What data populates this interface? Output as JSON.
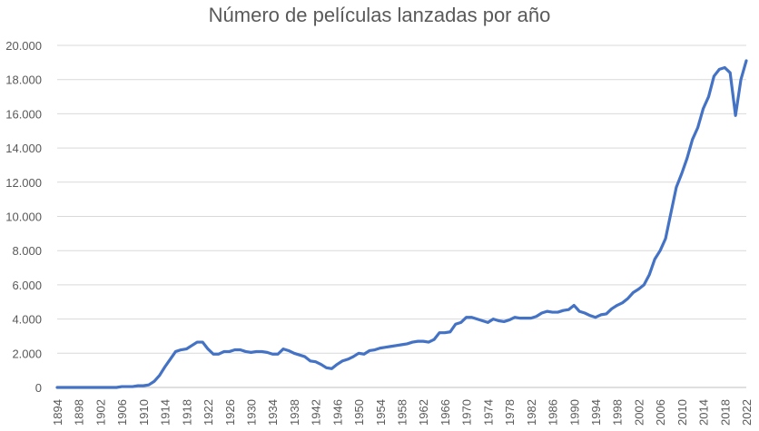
{
  "chart_data": {
    "type": "line",
    "title": "Número de películas lanzadas por año",
    "xlabel": "",
    "ylabel": "",
    "ylim": [
      0,
      20000
    ],
    "grid": true,
    "legend": "none",
    "y_ticks": [
      "0",
      "2.000",
      "4.000",
      "6.000",
      "8.000",
      "10.000",
      "12.000",
      "14.000",
      "16.000",
      "18.000",
      "20.000"
    ],
    "x_ticks": [
      1894,
      1898,
      1902,
      1906,
      1910,
      1914,
      1918,
      1922,
      1926,
      1930,
      1934,
      1938,
      1942,
      1946,
      1950,
      1954,
      1958,
      1962,
      1966,
      1970,
      1974,
      1978,
      1982,
      1986,
      1990,
      1994,
      1998,
      2002,
      2006,
      2010,
      2014,
      2018,
      2022
    ],
    "series": [
      {
        "color": "#4472c4",
        "points": [
          [
            1894,
            0
          ],
          [
            1895,
            0
          ],
          [
            1896,
            0
          ],
          [
            1897,
            0
          ],
          [
            1898,
            0
          ],
          [
            1899,
            0
          ],
          [
            1900,
            0
          ],
          [
            1901,
            0
          ],
          [
            1902,
            0
          ],
          [
            1903,
            0
          ],
          [
            1904,
            0
          ],
          [
            1905,
            0
          ],
          [
            1906,
            50
          ],
          [
            1907,
            50
          ],
          [
            1908,
            50
          ],
          [
            1909,
            100
          ],
          [
            1910,
            100
          ],
          [
            1911,
            150
          ],
          [
            1912,
            350
          ],
          [
            1913,
            700
          ],
          [
            1914,
            1200
          ],
          [
            1915,
            1650
          ],
          [
            1916,
            2100
          ],
          [
            1917,
            2200
          ],
          [
            1918,
            2250
          ],
          [
            1919,
            2450
          ],
          [
            1920,
            2650
          ],
          [
            1921,
            2650
          ],
          [
            1922,
            2250
          ],
          [
            1923,
            1950
          ],
          [
            1924,
            1950
          ],
          [
            1925,
            2100
          ],
          [
            1926,
            2100
          ],
          [
            1927,
            2200
          ],
          [
            1928,
            2200
          ],
          [
            1929,
            2100
          ],
          [
            1930,
            2050
          ],
          [
            1931,
            2100
          ],
          [
            1932,
            2100
          ],
          [
            1933,
            2050
          ],
          [
            1934,
            1950
          ],
          [
            1935,
            1950
          ],
          [
            1936,
            2250
          ],
          [
            1937,
            2150
          ],
          [
            1938,
            2000
          ],
          [
            1939,
            1900
          ],
          [
            1940,
            1800
          ],
          [
            1941,
            1550
          ],
          [
            1942,
            1500
          ],
          [
            1943,
            1350
          ],
          [
            1944,
            1150
          ],
          [
            1945,
            1100
          ],
          [
            1946,
            1350
          ],
          [
            1947,
            1550
          ],
          [
            1948,
            1650
          ],
          [
            1949,
            1800
          ],
          [
            1950,
            2000
          ],
          [
            1951,
            1950
          ],
          [
            1952,
            2150
          ],
          [
            1953,
            2200
          ],
          [
            1954,
            2300
          ],
          [
            1955,
            2350
          ],
          [
            1956,
            2400
          ],
          [
            1957,
            2450
          ],
          [
            1958,
            2500
          ],
          [
            1959,
            2550
          ],
          [
            1960,
            2650
          ],
          [
            1961,
            2700
          ],
          [
            1962,
            2700
          ],
          [
            1963,
            2650
          ],
          [
            1964,
            2800
          ],
          [
            1965,
            3200
          ],
          [
            1966,
            3200
          ],
          [
            1967,
            3250
          ],
          [
            1968,
            3700
          ],
          [
            1969,
            3800
          ],
          [
            1970,
            4100
          ],
          [
            1971,
            4100
          ],
          [
            1972,
            4000
          ],
          [
            1973,
            3900
          ],
          [
            1974,
            3800
          ],
          [
            1975,
            4000
          ],
          [
            1976,
            3900
          ],
          [
            1977,
            3850
          ],
          [
            1978,
            3950
          ],
          [
            1979,
            4100
          ],
          [
            1980,
            4050
          ],
          [
            1981,
            4050
          ],
          [
            1982,
            4050
          ],
          [
            1983,
            4150
          ],
          [
            1984,
            4350
          ],
          [
            1985,
            4450
          ],
          [
            1986,
            4400
          ],
          [
            1987,
            4400
          ],
          [
            1988,
            4500
          ],
          [
            1989,
            4550
          ],
          [
            1990,
            4800
          ],
          [
            1991,
            4450
          ],
          [
            1992,
            4350
          ],
          [
            1993,
            4200
          ],
          [
            1994,
            4100
          ],
          [
            1995,
            4250
          ],
          [
            1996,
            4300
          ],
          [
            1997,
            4600
          ],
          [
            1998,
            4800
          ],
          [
            1999,
            4950
          ],
          [
            2000,
            5200
          ],
          [
            2001,
            5550
          ],
          [
            2002,
            5750
          ],
          [
            2003,
            6000
          ],
          [
            2004,
            6600
          ],
          [
            2005,
            7500
          ],
          [
            2006,
            8000
          ],
          [
            2007,
            8700
          ],
          [
            2008,
            10200
          ],
          [
            2009,
            11700
          ],
          [
            2010,
            12500
          ],
          [
            2011,
            13400
          ],
          [
            2012,
            14500
          ],
          [
            2013,
            15200
          ],
          [
            2014,
            16300
          ],
          [
            2015,
            17000
          ],
          [
            2016,
            18200
          ],
          [
            2017,
            18600
          ],
          [
            2018,
            18700
          ],
          [
            2019,
            18400
          ],
          [
            2020,
            15900
          ],
          [
            2021,
            18000
          ],
          [
            2022,
            19100
          ]
        ]
      }
    ]
  }
}
